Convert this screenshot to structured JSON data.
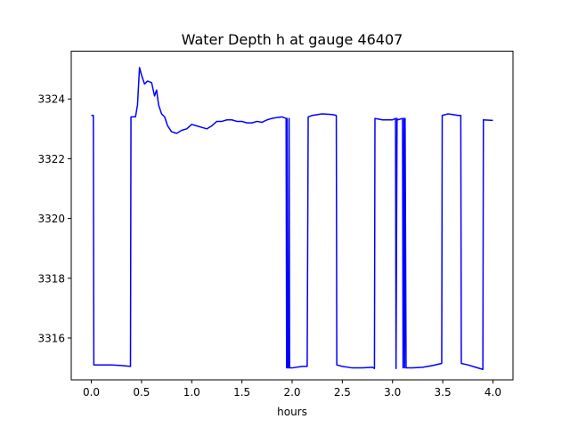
{
  "chart_data": {
    "type": "line",
    "title": "Water Depth h at gauge 46407",
    "xlabel": "hours",
    "ylabel": "",
    "xlim": [
      -0.2,
      4.2
    ],
    "ylim": [
      3314.6,
      3325.6
    ],
    "x_ticks": [
      0.0,
      0.5,
      1.0,
      1.5,
      2.0,
      2.5,
      3.0,
      3.5,
      4.0
    ],
    "x_tick_labels": [
      "0.0",
      "0.5",
      "1.0",
      "1.5",
      "2.0",
      "2.5",
      "3.0",
      "3.5",
      "4.0"
    ],
    "y_ticks": [
      3316,
      3318,
      3320,
      3322,
      3324
    ],
    "y_tick_labels": [
      "3316",
      "3318",
      "3320",
      "3322",
      "3324"
    ],
    "grid": false,
    "legend": "none",
    "color": "#0000ff",
    "series": [
      {
        "x": [
          0.0,
          0.02,
          0.025,
          0.2,
          0.3,
          0.39,
          0.395,
          0.44,
          0.46,
          0.48,
          0.5,
          0.53,
          0.56,
          0.6,
          0.63,
          0.65,
          0.67,
          0.7,
          0.73,
          0.76,
          0.8,
          0.85,
          0.9,
          0.95,
          1.0,
          1.05,
          1.1,
          1.15,
          1.2,
          1.25,
          1.3,
          1.35,
          1.4,
          1.45,
          1.5,
          1.55,
          1.6,
          1.65,
          1.7,
          1.75,
          1.8,
          1.85,
          1.9,
          1.94,
          1.945,
          1.95,
          1.955,
          1.965,
          1.97,
          1.975,
          2.0,
          2.1,
          2.15,
          2.16,
          2.2,
          2.3,
          2.4,
          2.44,
          2.445,
          2.5,
          2.6,
          2.7,
          2.8,
          2.82,
          2.825,
          2.9,
          2.95,
          3.0,
          3.03,
          3.035,
          3.045,
          3.05,
          3.1,
          3.105,
          3.115,
          3.12,
          3.125,
          3.135,
          3.14,
          3.2,
          3.3,
          3.4,
          3.49,
          3.495,
          3.55,
          3.6,
          3.65,
          3.68,
          3.685,
          3.75,
          3.8,
          3.9,
          3.905,
          4.0
        ],
        "y": [
          3323.45,
          3323.45,
          3315.1,
          3315.1,
          3315.08,
          3315.05,
          3323.4,
          3323.4,
          3323.8,
          3325.05,
          3324.8,
          3324.5,
          3324.6,
          3324.55,
          3324.1,
          3324.3,
          3323.8,
          3323.5,
          3323.4,
          3323.1,
          3322.9,
          3322.85,
          3322.95,
          3323.0,
          3323.15,
          3323.1,
          3323.05,
          3323.0,
          3323.1,
          3323.25,
          3323.25,
          3323.3,
          3323.3,
          3323.25,
          3323.25,
          3323.2,
          3323.2,
          3323.25,
          3323.22,
          3323.3,
          3323.35,
          3323.38,
          3323.4,
          3323.35,
          3315.0,
          3323.35,
          3315.0,
          3315.0,
          3323.35,
          3315.0,
          3315.0,
          3315.05,
          3315.05,
          3323.4,
          3323.45,
          3323.5,
          3323.48,
          3323.45,
          3315.1,
          3315.05,
          3315.0,
          3315.0,
          3315.02,
          3314.98,
          3323.35,
          3323.3,
          3323.3,
          3323.3,
          3323.35,
          3314.98,
          3323.35,
          3323.3,
          3323.35,
          3315.0,
          3323.35,
          3315.0,
          3323.35,
          3315.0,
          3315.0,
          3315.0,
          3315.02,
          3315.08,
          3315.15,
          3323.45,
          3323.5,
          3323.48,
          3323.45,
          3323.45,
          3315.15,
          3315.1,
          3315.05,
          3314.95,
          3323.3,
          3323.28
        ]
      }
    ]
  }
}
